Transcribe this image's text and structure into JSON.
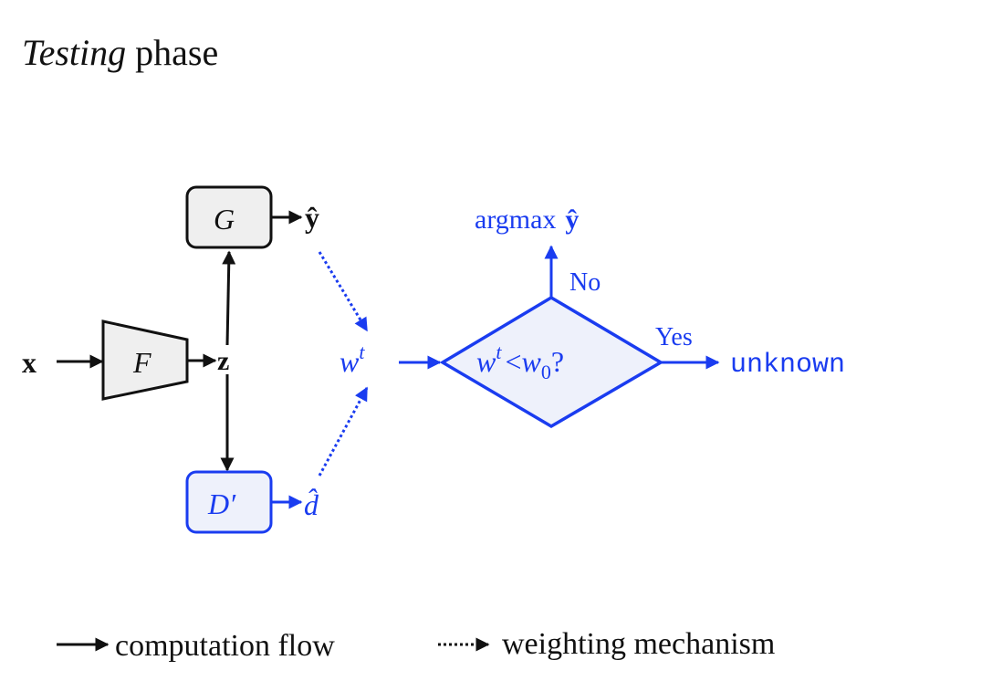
{
  "title": {
    "italic": "Testing",
    "rest": " phase"
  },
  "nodes": {
    "input": "x",
    "encoder": "F",
    "latent": "z",
    "classifier": "G",
    "classifier_output": "ŷ",
    "discriminator": "D′",
    "discriminator_output": "d̂",
    "weight": {
      "base": "w",
      "sup": "t"
    },
    "decision": {
      "base": "w",
      "sup": "t",
      "op": "<",
      "rhs": "w",
      "rhs_sub": "0",
      "q": "?"
    },
    "no_label": "No",
    "yes_label": "Yes",
    "no_result": {
      "text": "argmax",
      "symbol": "ŷ"
    },
    "yes_result": "unknown"
  },
  "legend": {
    "solid": "computation flow",
    "dotted": "weighting mechanism"
  },
  "colors": {
    "black": "#111111",
    "blue": "#1a3cf0",
    "box_fill": "#efefef",
    "blue_fill": "#eef1fb"
  }
}
